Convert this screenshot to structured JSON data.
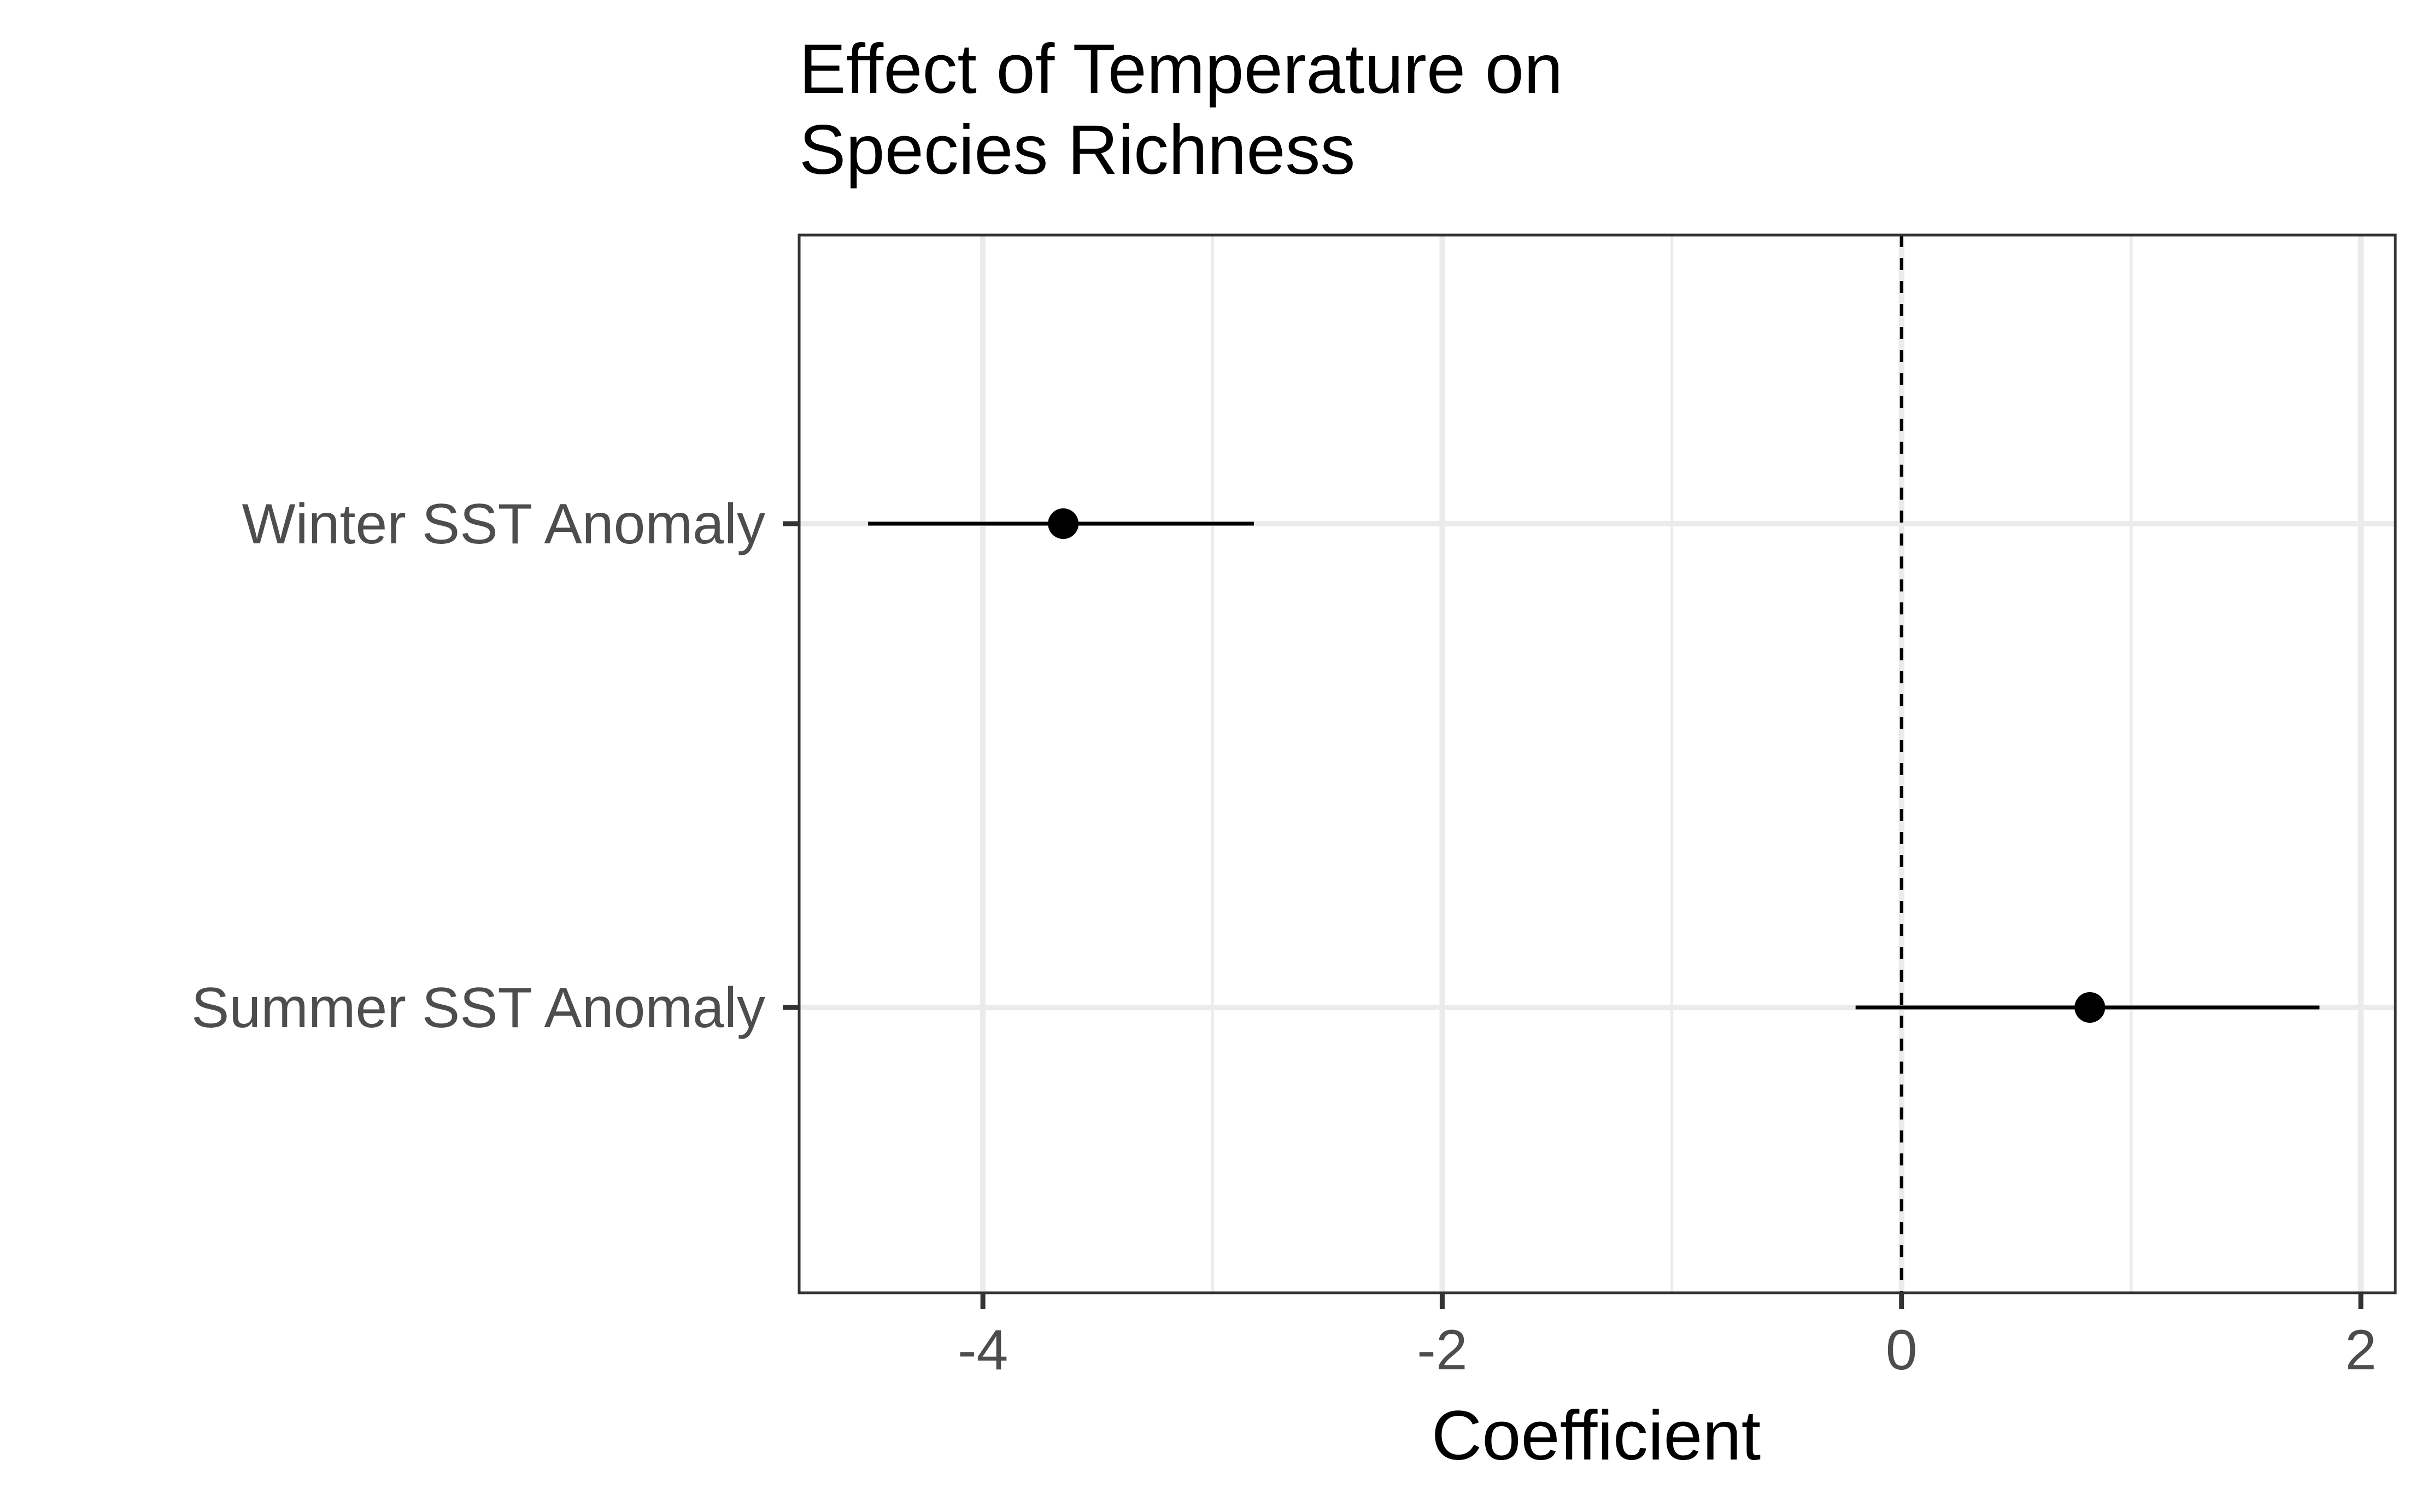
{
  "chart_data": {
    "type": "scatter",
    "title_lines": [
      "Effect of Temperature on",
      "Species Richness"
    ],
    "xlabel": "Coefficient",
    "ylabel": "",
    "xlim": [
      -4.8,
      2.15
    ],
    "x_ticks": [
      -4,
      -2,
      0,
      2
    ],
    "x_tick_labels": [
      "-4",
      "-2",
      "0",
      "2"
    ],
    "x_minor_ticks": [
      -3,
      -1,
      1
    ],
    "reference_line": {
      "x": 0,
      "style": "dashed"
    },
    "categories": [
      "Winter SST Anomaly",
      "Summer SST Anomaly"
    ],
    "points": [
      {
        "label": "Winter SST Anomaly",
        "estimate": -3.65,
        "lower": -4.5,
        "upper": -2.82
      },
      {
        "label": "Summer SST Anomaly",
        "estimate": 0.82,
        "lower": -0.2,
        "upper": 1.82
      }
    ],
    "grid": true,
    "legend": "none",
    "colors": {
      "point": "#000000",
      "grid": "#ebebeb",
      "panel_border": "#333333",
      "tick_text": "#4d4d4d"
    }
  }
}
